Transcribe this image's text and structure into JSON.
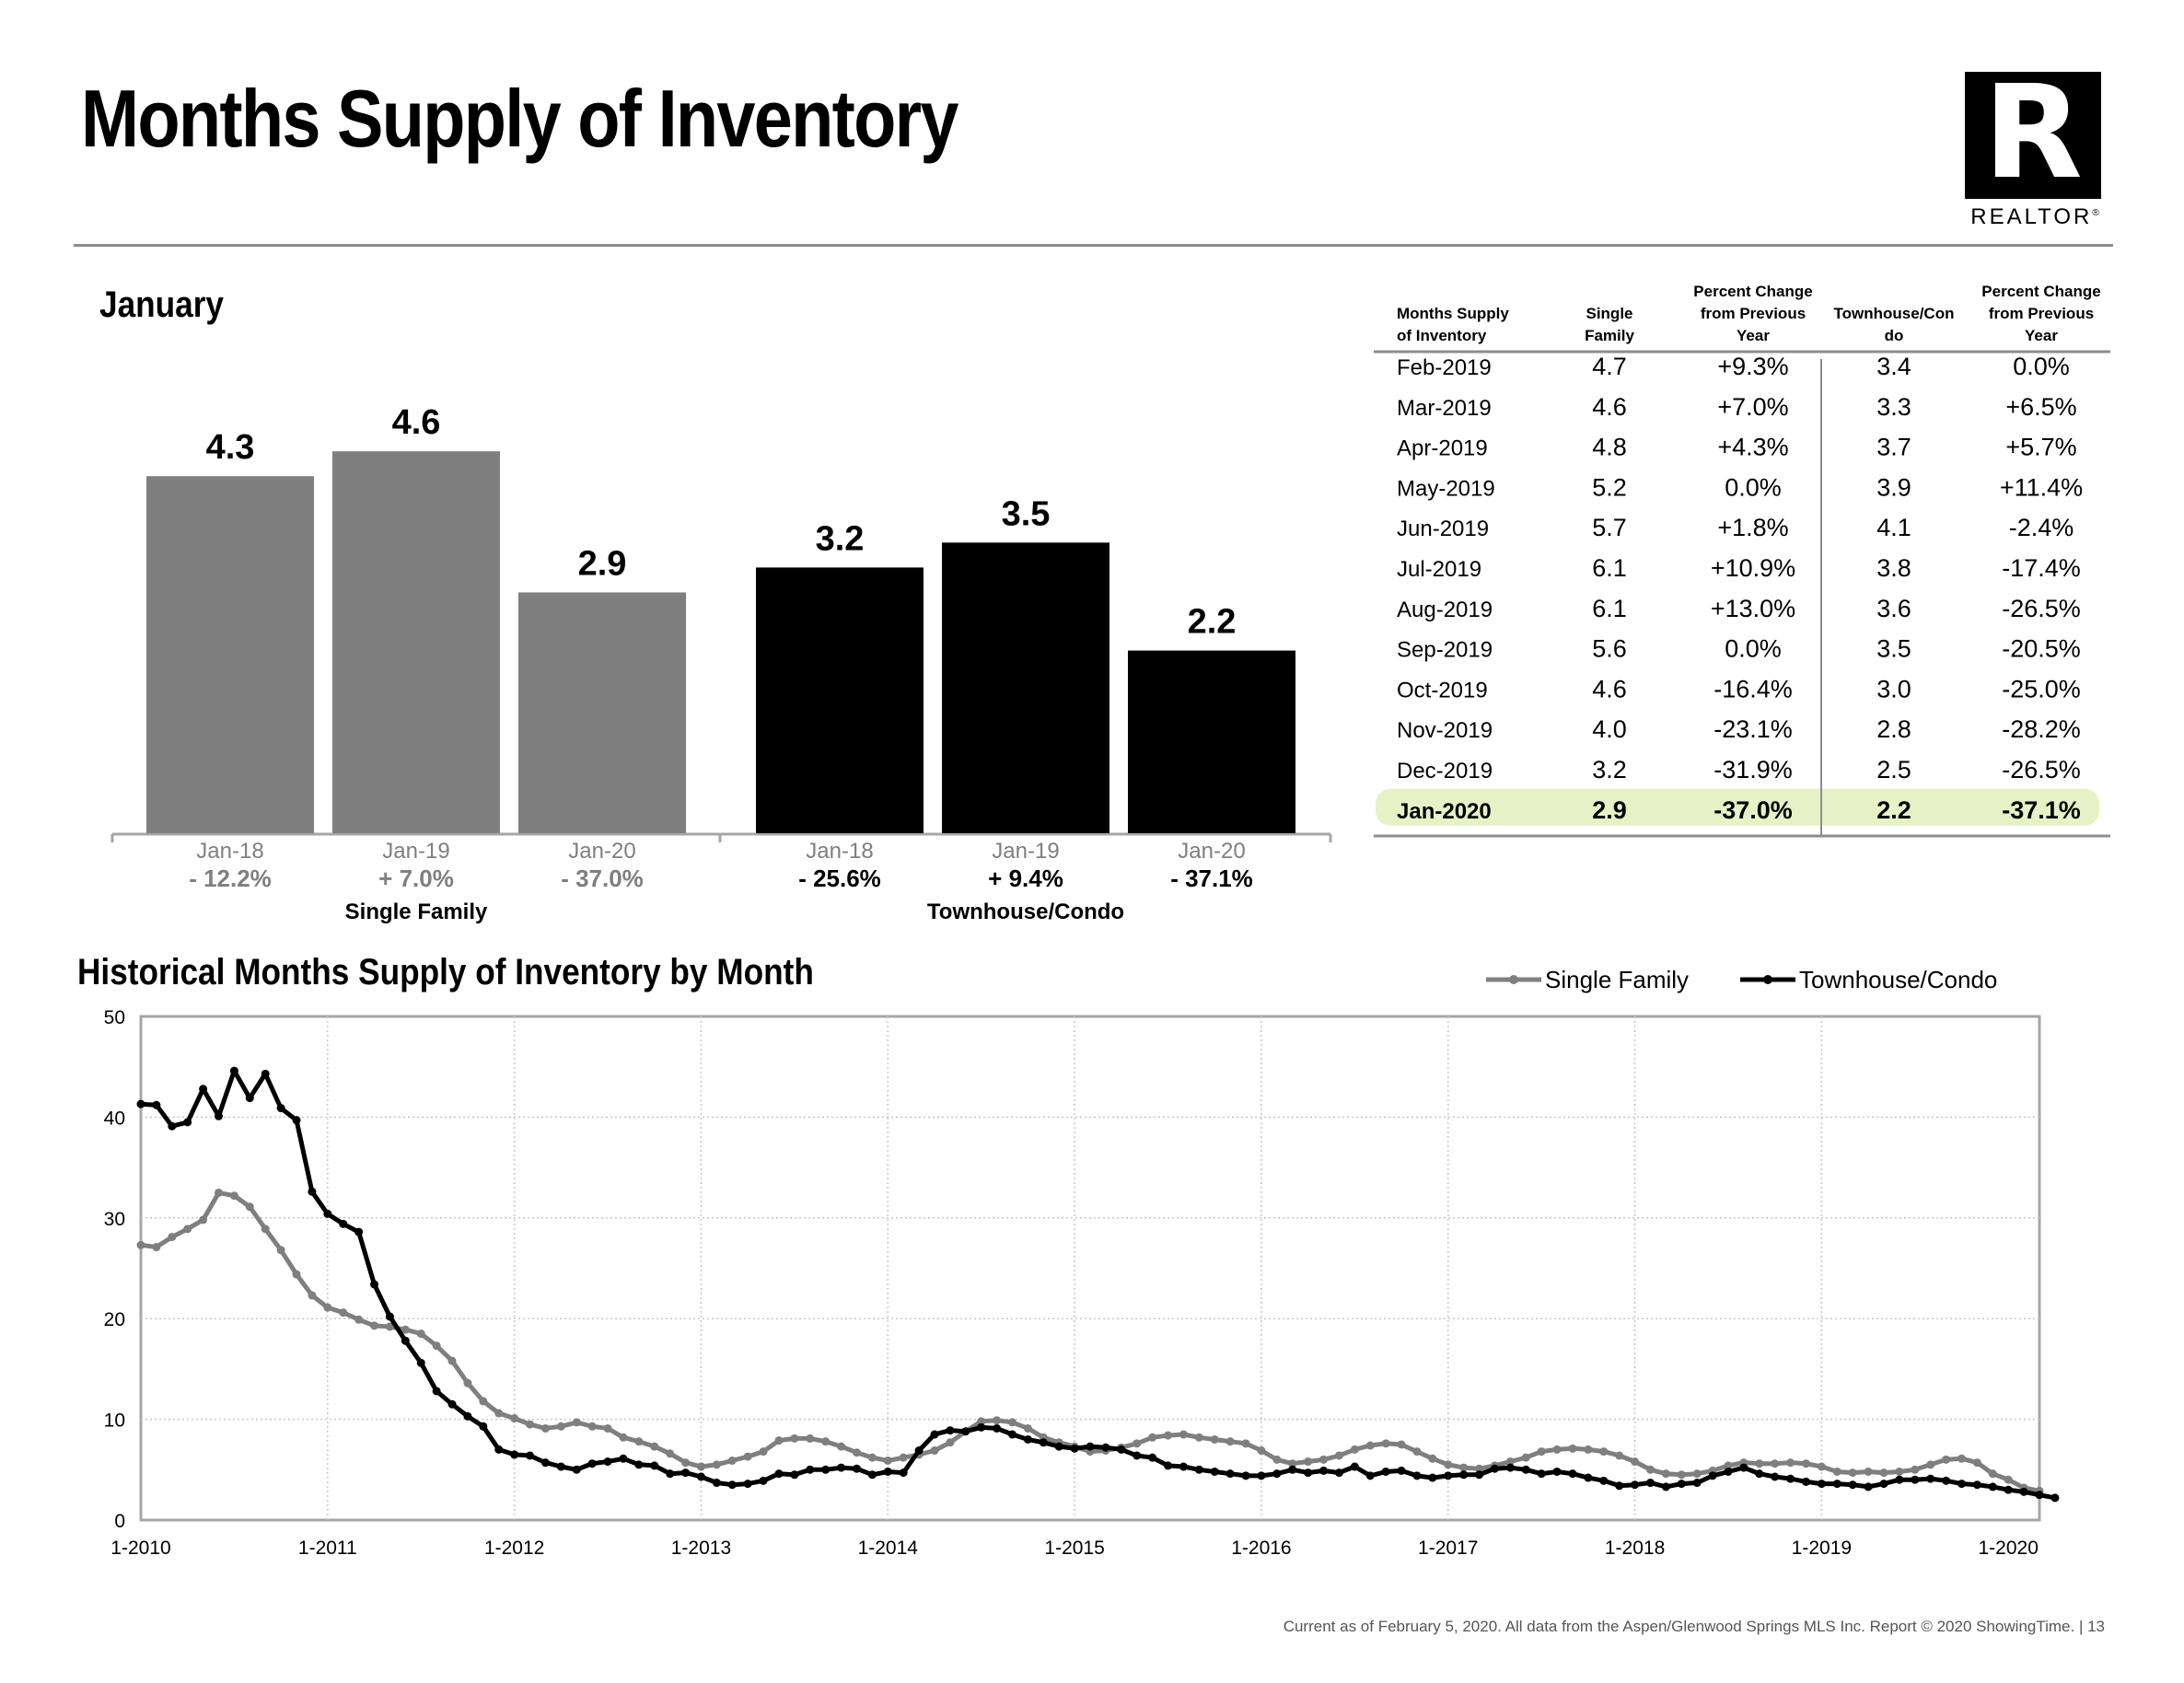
{
  "page": {
    "title": "Months Supply of Inventory",
    "logo_text": "REALTOR",
    "logo_reg": "®",
    "footer": "Current as of February 5, 2020.  All data from the Aspen/Glenwood Springs MLS Inc. Report © 2020 ShowingTime.  |  13"
  },
  "colors": {
    "single_family": "#7f7f7f",
    "townhouse": "#000000",
    "highlight": "#e6f2c6",
    "grid": "#c8c8c8"
  },
  "chart_data": [
    {
      "type": "bar",
      "title": "January",
      "groups": [
        {
          "name": "Single Family",
          "color": "#7f7f7f",
          "categories": [
            "Jan-18",
            "Jan-19",
            "Jan-20"
          ],
          "values": [
            4.3,
            4.6,
            2.9
          ],
          "value_labels": [
            "4.3",
            "4.6",
            "2.9"
          ],
          "changes": [
            "- 12.2%",
            "+ 7.0%",
            "- 37.0%"
          ]
        },
        {
          "name": "Townhouse/Condo",
          "color": "#000000",
          "categories": [
            "Jan-18",
            "Jan-19",
            "Jan-20"
          ],
          "values": [
            3.2,
            3.5,
            2.2
          ],
          "value_labels": [
            "3.2",
            "3.5",
            "2.2"
          ],
          "changes": [
            "- 25.6%",
            "+ 9.4%",
            "- 37.1%"
          ]
        }
      ],
      "ylim": [
        0,
        5.4
      ]
    },
    {
      "type": "table",
      "columns": [
        "Months Supply of Inventory",
        "Single Family",
        "Percent Change from Previous Year",
        "Townhouse/Condo",
        "Percent Change from Previous Year"
      ],
      "column_lines": [
        [
          "Months Supply",
          "of Inventory"
        ],
        [
          "Single",
          "Family"
        ],
        [
          "Percent Change",
          "from Previous",
          "Year"
        ],
        [
          "Townhouse/Con",
          "do"
        ],
        [
          "Percent Change",
          "from Previous",
          "Year"
        ]
      ],
      "rows": [
        [
          "Feb-2019",
          "4.7",
          "+9.3%",
          "3.4",
          "0.0%"
        ],
        [
          "Mar-2019",
          "4.6",
          "+7.0%",
          "3.3",
          "+6.5%"
        ],
        [
          "Apr-2019",
          "4.8",
          "+4.3%",
          "3.7",
          "+5.7%"
        ],
        [
          "May-2019",
          "5.2",
          "0.0%",
          "3.9",
          "+11.4%"
        ],
        [
          "Jun-2019",
          "5.7",
          "+1.8%",
          "4.1",
          "-2.4%"
        ],
        [
          "Jul-2019",
          "6.1",
          "+10.9%",
          "3.8",
          "-17.4%"
        ],
        [
          "Aug-2019",
          "6.1",
          "+13.0%",
          "3.6",
          "-26.5%"
        ],
        [
          "Sep-2019",
          "5.6",
          "0.0%",
          "3.5",
          "-20.5%"
        ],
        [
          "Oct-2019",
          "4.6",
          "-16.4%",
          "3.0",
          "-25.0%"
        ],
        [
          "Nov-2019",
          "4.0",
          "-23.1%",
          "2.8",
          "-28.2%"
        ],
        [
          "Dec-2019",
          "3.2",
          "-31.9%",
          "2.5",
          "-26.5%"
        ],
        [
          "Jan-2020",
          "2.9",
          "-37.0%",
          "2.2",
          "-37.1%"
        ]
      ],
      "highlight_row": 11
    },
    {
      "type": "line",
      "title": "Historical Months Supply of Inventory by Month",
      "ylim": [
        0,
        50
      ],
      "yticks": [
        0,
        10,
        20,
        30,
        40,
        50
      ],
      "xticks": [
        "1-2010",
        "1-2011",
        "1-2012",
        "1-2013",
        "1-2014",
        "1-2015",
        "1-2016",
        "1-2017",
        "1-2018",
        "1-2019",
        "1-2020"
      ],
      "legend_position": "top-right",
      "grid": true,
      "series": [
        {
          "name": "Single Family",
          "color": "#7f7f7f",
          "values": [
            27.3,
            27.1,
            28.1,
            28.9,
            29.8,
            32.5,
            32.2,
            31.1,
            28.9,
            26.8,
            24.4,
            22.3,
            21.1,
            20.6,
            19.9,
            19.3,
            19.2,
            18.9,
            18.5,
            17.3,
            15.8,
            13.6,
            11.8,
            10.6,
            10.1,
            9.5,
            9.1,
            9.3,
            9.7,
            9.3,
            9.1,
            8.2,
            7.8,
            7.3,
            6.6,
            5.7,
            5.3,
            5.5,
            5.9,
            6.3,
            6.8,
            7.9,
            8.1,
            8.1,
            7.8,
            7.3,
            6.7,
            6.2,
            5.9,
            6.2,
            6.5,
            6.9,
            7.7,
            8.8,
            9.8,
            9.9,
            9.7,
            9.1,
            8.2,
            7.7,
            7.3,
            6.8,
            6.9,
            7.2,
            7.6,
            8.2,
            8.4,
            8.5,
            8.2,
            8.0,
            7.8,
            7.6,
            6.9,
            6.0,
            5.6,
            5.8,
            6.0,
            6.4,
            7.0,
            7.4,
            7.6,
            7.5,
            6.8,
            6.1,
            5.5,
            5.2,
            5.1,
            5.4,
            5.8,
            6.2,
            6.8,
            7.0,
            7.1,
            7.0,
            6.8,
            6.4,
            5.8,
            5.0,
            4.6,
            4.5,
            4.6,
            4.9,
            5.4,
            5.7,
            5.6,
            5.6,
            5.7,
            5.6,
            5.3,
            4.8,
            4.7,
            4.8,
            4.7,
            4.8,
            5.0,
            5.5,
            6.0,
            6.1,
            5.7,
            4.6,
            4.0,
            3.2,
            2.9
          ]
        },
        {
          "name": "Townhouse/Condo",
          "color": "#000000",
          "values": [
            41.3,
            41.2,
            39.1,
            39.5,
            42.8,
            40.1,
            44.6,
            41.9,
            44.3,
            40.9,
            39.7,
            32.6,
            30.4,
            29.4,
            28.6,
            23.4,
            20.2,
            17.8,
            15.6,
            12.8,
            11.5,
            10.3,
            9.3,
            7.0,
            6.5,
            6.4,
            5.7,
            5.3,
            5.0,
            5.6,
            5.8,
            6.1,
            5.5,
            5.4,
            4.6,
            4.7,
            4.3,
            3.7,
            3.5,
            3.6,
            3.9,
            4.6,
            4.5,
            5.0,
            5.0,
            5.2,
            5.1,
            4.5,
            4.8,
            4.7,
            6.9,
            8.5,
            8.9,
            8.8,
            9.2,
            9.1,
            8.5,
            8.0,
            7.7,
            7.3,
            7.1,
            7.3,
            7.2,
            7.0,
            6.4,
            6.2,
            5.4,
            5.3,
            5.0,
            4.8,
            4.6,
            4.4,
            4.4,
            4.6,
            5.0,
            4.7,
            4.9,
            4.7,
            5.3,
            4.4,
            4.8,
            4.9,
            4.4,
            4.2,
            4.4,
            4.5,
            4.5,
            5.1,
            5.2,
            5.0,
            4.6,
            4.8,
            4.6,
            4.2,
            3.9,
            3.4,
            3.5,
            3.7,
            3.3,
            3.6,
            3.7,
            4.4,
            4.8,
            5.2,
            4.6,
            4.3,
            4.1,
            3.8,
            3.6,
            3.6,
            3.5,
            3.3,
            3.6,
            4.0,
            4.0,
            4.1,
            3.9,
            3.6,
            3.5,
            3.3,
            3.0,
            2.8,
            2.5,
            2.2
          ]
        }
      ]
    }
  ]
}
